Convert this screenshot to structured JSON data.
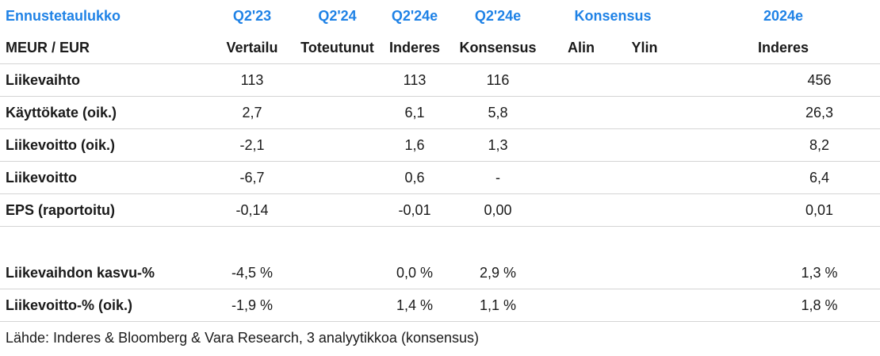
{
  "header": {
    "title": "Ennustetaulukko",
    "columns_top": [
      "Q2'23",
      "Q2'24",
      "Q2'24e",
      "Q2'24e",
      "Konsensus",
      "2024e"
    ],
    "unit_label": "MEUR / EUR",
    "columns_sub": [
      "Vertailu",
      "Toteutunut",
      "Inderes",
      "Konsensus",
      "Alin",
      "Ylin",
      "Inderes"
    ]
  },
  "rows": [
    {
      "label": "Liikevaihto",
      "values": [
        "113",
        "",
        "113",
        "116",
        "",
        "",
        "456"
      ]
    },
    {
      "label": "Käyttökate (oik.)",
      "values": [
        "2,7",
        "",
        "6,1",
        "5,8",
        "",
        "",
        "26,3"
      ]
    },
    {
      "label": "Liikevoitto (oik.)",
      "values": [
        "-2,1",
        "",
        "1,6",
        "1,3",
        "",
        "",
        "8,2"
      ]
    },
    {
      "label": "Liikevoitto",
      "values": [
        "-6,7",
        "",
        "0,6",
        "-",
        "",
        "",
        "6,4"
      ]
    },
    {
      "label": "EPS (raportoitu)",
      "values": [
        "-0,14",
        "",
        "-0,01",
        "0,00",
        "",
        "",
        "0,01"
      ]
    }
  ],
  "rows2": [
    {
      "label": "Liikevaihdon kasvu-%",
      "values": [
        "-4,5 %",
        "",
        "0,0 %",
        "2,9 %",
        "",
        "",
        "1,3 %"
      ]
    },
    {
      "label": "Liikevoitto-% (oik.)",
      "values": [
        "-1,9 %",
        "",
        "1,4 %",
        "1,1 %",
        "",
        "",
        "1,8 %"
      ]
    }
  ],
  "source": "Lähde: Inderes & Bloomberg & Vara Research, 3 analyytikkoa  (konsensus)",
  "colors": {
    "accent": "#1f82e6",
    "divider": "#d4d4d4"
  }
}
